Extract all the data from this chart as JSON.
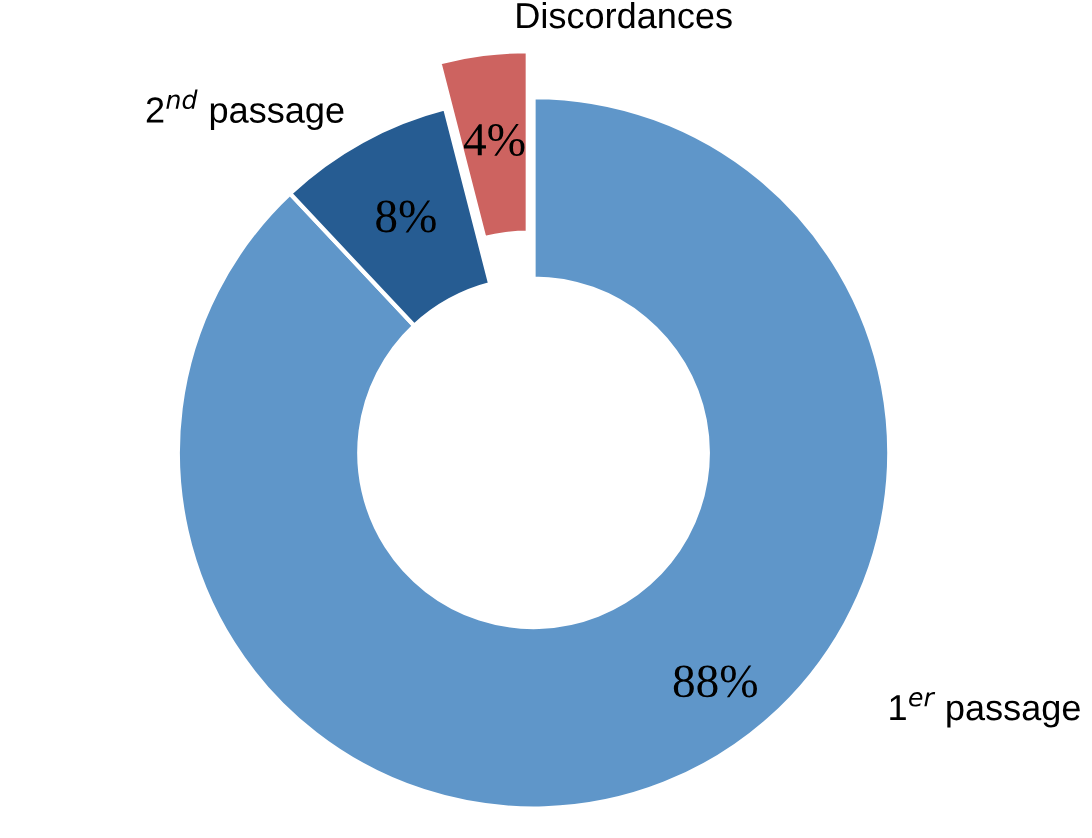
{
  "chart_data": {
    "type": "donut",
    "categories": [
      "1$^{er}$ passage",
      "2$^{nd}$ passage",
      "Discordances"
    ],
    "values": [
      88,
      8,
      4
    ],
    "value_labels": [
      "88%",
      "8%",
      "4%"
    ],
    "colors": [
      "#5f96c9",
      "#265c92",
      "#cd6360"
    ],
    "legend": false
  }
}
